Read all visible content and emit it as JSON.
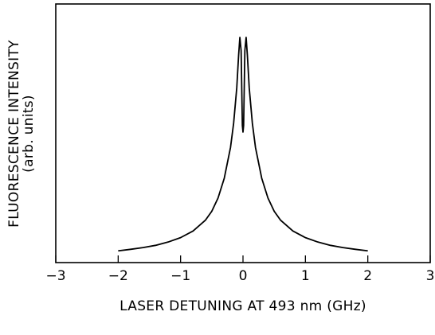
{
  "chart_data": {
    "type": "line",
    "title": "",
    "xlabel": "LASER DETUNING AT 493 nm (GHz)",
    "ylabel_line1": "FLUORESCENCE INTENSITY",
    "ylabel_line2": "(arb. units)",
    "xlim": [
      -3,
      3
    ],
    "ylim": [
      0,
      1
    ],
    "xticks": [
      -3,
      -2,
      -1,
      0,
      1,
      2,
      3
    ],
    "xtick_labels": [
      "−3",
      "−2",
      "−1",
      "0",
      "1",
      "2",
      "3"
    ],
    "yticks": [],
    "grid": false,
    "legend": "none",
    "series": [
      {
        "x": [
          -2.0,
          -1.8,
          -1.6,
          -1.4,
          -1.2,
          -1.0,
          -0.8,
          -0.6,
          -0.5,
          -0.4,
          -0.3,
          -0.2,
          -0.15,
          -0.1,
          -0.07,
          -0.05,
          -0.03,
          -0.01,
          0.0,
          0.01,
          0.03,
          0.05,
          0.07,
          0.1,
          0.15,
          0.2,
          0.3,
          0.4,
          0.5,
          0.6,
          0.8,
          1.0,
          1.2,
          1.4,
          1.6,
          1.8,
          2.0
        ],
        "y": [
          0.01,
          0.017,
          0.025,
          0.035,
          0.05,
          0.07,
          0.1,
          0.15,
          0.19,
          0.25,
          0.34,
          0.48,
          0.59,
          0.75,
          0.9,
          0.98,
          0.92,
          0.58,
          0.55,
          0.58,
          0.92,
          0.98,
          0.9,
          0.75,
          0.59,
          0.48,
          0.34,
          0.25,
          0.19,
          0.15,
          0.1,
          0.07,
          0.05,
          0.035,
          0.025,
          0.017,
          0.01
        ]
      }
    ]
  }
}
